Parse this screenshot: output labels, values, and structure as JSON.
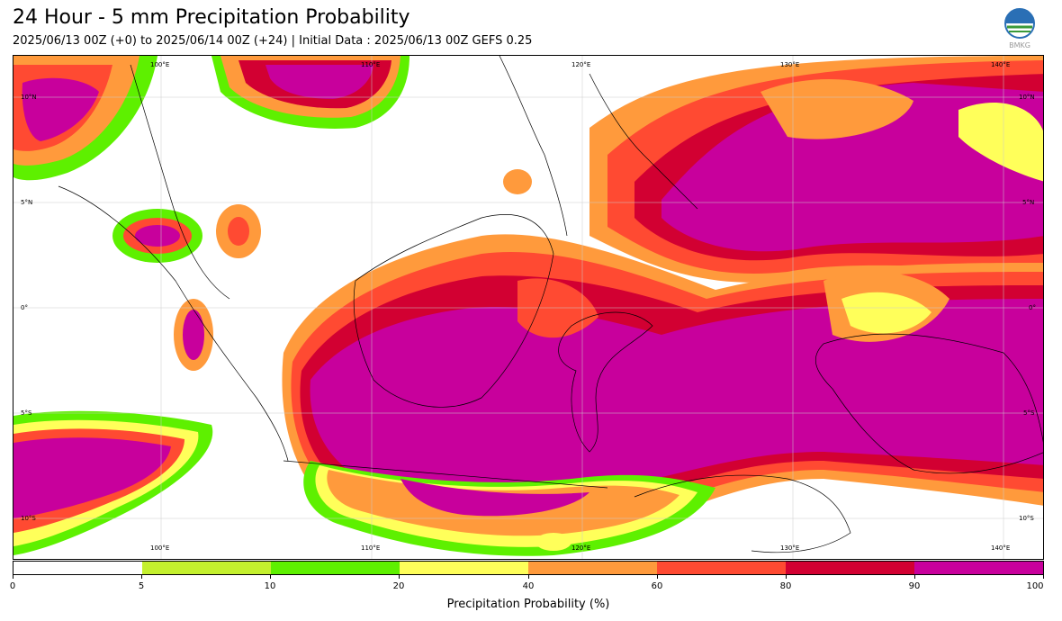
{
  "header": {
    "title": "24 Hour - 5 mm Precipitation Probability",
    "subtitle": "2025/06/13 00Z (+0) to 2025/06/14 00Z (+24) | Initial Data : 2025/06/13 00Z GEFS 0.25",
    "logo_text": "BMKG"
  },
  "map": {
    "lon_labels_top": [
      "100°E",
      "110°E",
      "120°E",
      "130°E",
      "140°E"
    ],
    "lon_labels_bottom": [
      "100°E",
      "110°E",
      "120°E",
      "130°E",
      "140°E"
    ],
    "lat_labels_left": [
      "10°N",
      "5°N",
      "0°",
      "5°S",
      "10°S"
    ],
    "lat_labels_right": [
      "10°N",
      "5°N",
      "0°",
      "5°S",
      "10°S"
    ]
  },
  "colorbar": {
    "title": "Precipitation Probability (%)",
    "ticks": [
      "0",
      "5",
      "10",
      "20",
      "40",
      "60",
      "80",
      "90",
      "100"
    ],
    "colors": [
      "#ffffff",
      "#c4f02e",
      "#5ef000",
      "#ffff5a",
      "#ff9a3c",
      "#ff4a32",
      "#d20032",
      "#c8009c"
    ]
  }
}
